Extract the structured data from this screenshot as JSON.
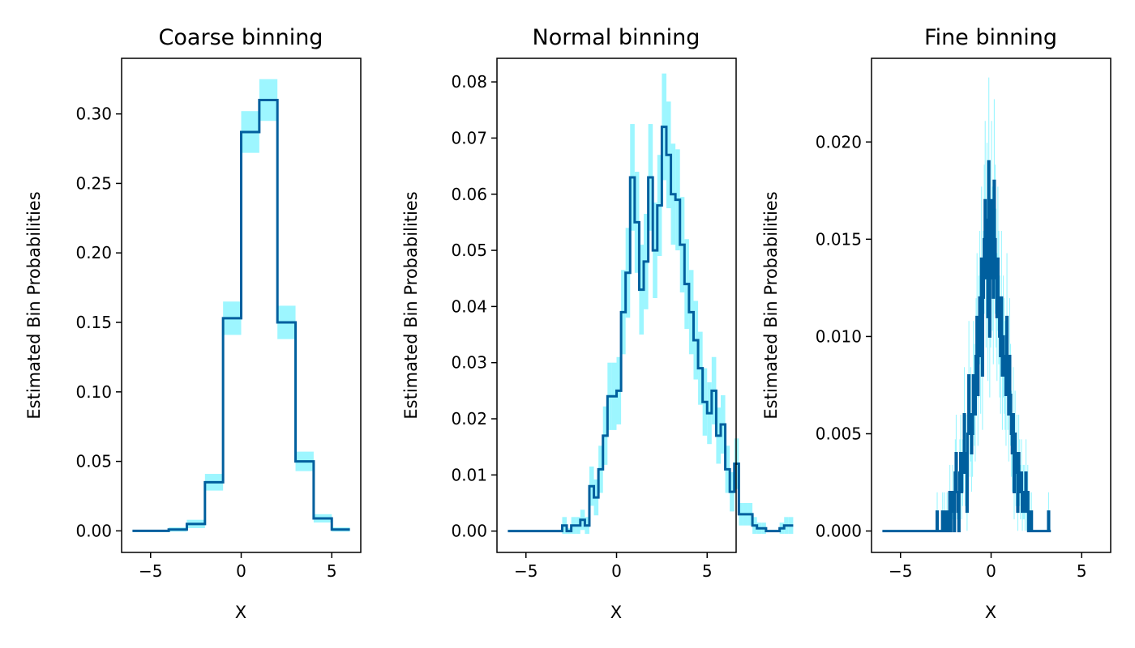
{
  "colors": {
    "line": "#005f9e",
    "band": "#9df6ff",
    "frame": "#000000"
  },
  "chart_data": [
    {
      "type": "line",
      "step": "post",
      "title": "Coarse binning",
      "xlabel": "X",
      "ylabel": "Estimated Bin Probabilities",
      "xlim": [
        -6.6,
        6.6
      ],
      "ylim": [
        -0.0155,
        0.34
      ],
      "xticks": [
        -5,
        0,
        5
      ],
      "xtick_labels": [
        "−5",
        "0",
        "5"
      ],
      "yticks": [
        0.0,
        0.05,
        0.1,
        0.15,
        0.2,
        0.25,
        0.3
      ],
      "ytick_labels": [
        "0.00",
        "0.05",
        "0.10",
        "0.15",
        "0.20",
        "0.25",
        "0.30"
      ],
      "grid": false,
      "bin_edges": [
        -6,
        -5,
        -4,
        -3,
        -2,
        -1,
        0,
        1,
        2,
        3,
        4,
        5,
        6
      ],
      "values": [
        0.0,
        0.0,
        0.001,
        0.005,
        0.035,
        0.153,
        0.287,
        0.31,
        0.15,
        0.05,
        0.009,
        0.001
      ],
      "band_halfwidth": [
        0.0,
        0.0,
        0.0015,
        0.003,
        0.006,
        0.012,
        0.015,
        0.015,
        0.012,
        0.007,
        0.003,
        0.0015
      ]
    },
    {
      "type": "line",
      "step": "post",
      "title": "Normal binning",
      "xlabel": "X",
      "ylabel": "Estimated Bin Probabilities",
      "xlim": [
        -6.6,
        6.6
      ],
      "ylim": [
        -0.0038,
        0.0842
      ],
      "xticks": [
        -5,
        0,
        5
      ],
      "xtick_labels": [
        "−5",
        "0",
        "5"
      ],
      "yticks": [
        0.0,
        0.01,
        0.02,
        0.03,
        0.04,
        0.05,
        0.06,
        0.07,
        0.08
      ],
      "ytick_labels": [
        "0.00",
        "0.01",
        "0.02",
        "0.03",
        "0.04",
        "0.05",
        "0.06",
        "0.07",
        "0.08"
      ],
      "grid": false,
      "bin_start": -6,
      "bin_width": 0.25,
      "values": [
        0,
        0,
        0,
        0,
        0,
        0,
        0,
        0,
        0,
        0,
        0,
        0,
        0.001,
        0,
        0.001,
        0.001,
        0.002,
        0.001,
        0.008,
        0.006,
        0.011,
        0.017,
        0.024,
        0.024,
        0.025,
        0.039,
        0.046,
        0.063,
        0.055,
        0.043,
        0.048,
        0.063,
        0.05,
        0.058,
        0.072,
        0.067,
        0.06,
        0.059,
        0.051,
        0.044,
        0.039,
        0.034,
        0.029,
        0.023,
        0.021,
        0.025,
        0.017,
        0.019,
        0.011,
        0.007,
        0.012,
        0.003,
        0.003,
        0.003,
        0.001,
        0.0005,
        0.0005,
        0.0,
        0.0,
        0.0,
        0.0005,
        0.001,
        0.001
      ],
      "band_halfwidth": [
        0,
        0,
        0,
        0,
        0,
        0,
        0,
        0,
        0,
        0,
        0,
        0,
        0.0015,
        0.0005,
        0.0015,
        0.0015,
        0.0018,
        0.0015,
        0.0035,
        0.0032,
        0.0042,
        0.0052,
        0.006,
        0.006,
        0.006,
        0.0075,
        0.008,
        0.0095,
        0.009,
        0.008,
        0.0085,
        0.0095,
        0.0085,
        0.009,
        0.0095,
        0.0095,
        0.009,
        0.009,
        0.0085,
        0.008,
        0.0075,
        0.007,
        0.0065,
        0.006,
        0.0055,
        0.006,
        0.005,
        0.0052,
        0.0042,
        0.0035,
        0.0045,
        0.002,
        0.002,
        0.002,
        0.0015,
        0.001,
        0.001,
        0,
        0,
        0,
        0.001,
        0.0015,
        0.0015
      ]
    },
    {
      "type": "line",
      "step": "post",
      "title": "Fine binning",
      "xlabel": "X",
      "ylabel": "Estimated Bin Probabilities",
      "xlim": [
        -6.6,
        6.6
      ],
      "ylim": [
        -0.0011,
        0.0243
      ],
      "xticks": [
        -5,
        0,
        5
      ],
      "xtick_labels": [
        "−5",
        "0",
        "5"
      ],
      "yticks": [
        0.0,
        0.005,
        0.01,
        0.015,
        0.02
      ],
      "ytick_labels": [
        "0.000",
        "0.005",
        "0.010",
        "0.015",
        "0.020"
      ],
      "grid": false,
      "bin_start": -6,
      "bin_width": 0.05,
      "values": [
        0,
        0,
        0,
        0,
        0,
        0,
        0,
        0,
        0,
        0,
        0,
        0,
        0,
        0,
        0,
        0,
        0,
        0,
        0,
        0,
        0,
        0,
        0,
        0,
        0,
        0,
        0,
        0,
        0,
        0,
        0,
        0,
        0,
        0,
        0,
        0,
        0,
        0,
        0,
        0,
        0,
        0,
        0,
        0,
        0,
        0,
        0,
        0,
        0,
        0,
        0,
        0,
        0,
        0,
        0,
        0,
        0,
        0,
        0,
        0,
        0.001,
        0,
        0,
        0,
        0,
        0,
        0.001,
        0,
        0.001,
        0,
        0,
        0.001,
        0,
        0.001,
        0.002,
        0,
        0.001,
        0.002,
        0.001,
        0,
        0.003,
        0.004,
        0.002,
        0.001,
        0,
        0.003,
        0.004,
        0.002,
        0.003,
        0.004,
        0.006,
        0.003,
        0.004,
        0.001,
        0.005,
        0.008,
        0.005,
        0.006,
        0.004,
        0.005,
        0.008,
        0.007,
        0.006,
        0.009,
        0.011,
        0.007,
        0.01,
        0.012,
        0.009,
        0.014,
        0.008,
        0.012,
        0.015,
        0.017,
        0.013,
        0.016,
        0.011,
        0.019,
        0.01,
        0.013,
        0.017,
        0.014,
        0.012,
        0.018,
        0.015,
        0.013,
        0.011,
        0.014,
        0.012,
        0.01,
        0.009,
        0.012,
        0.008,
        0.01,
        0.009,
        0.008,
        0.007,
        0.011,
        0.008,
        0.006,
        0.009,
        0.007,
        0.005,
        0.004,
        0.006,
        0.002,
        0.005,
        0.003,
        0.004,
        0.001,
        0.004,
        0.003,
        0.002,
        0.003,
        0.001,
        0.002,
        0.002,
        0.001,
        0.003,
        0.001,
        0.002,
        0,
        0.001,
        0,
        0.001,
        0,
        0,
        0,
        0,
        0,
        0,
        0,
        0,
        0,
        0,
        0,
        0,
        0,
        0,
        0,
        0,
        0,
        0,
        0.001,
        0,
        0
      ],
      "band_halfwidth_scale": 0.0014
    }
  ]
}
